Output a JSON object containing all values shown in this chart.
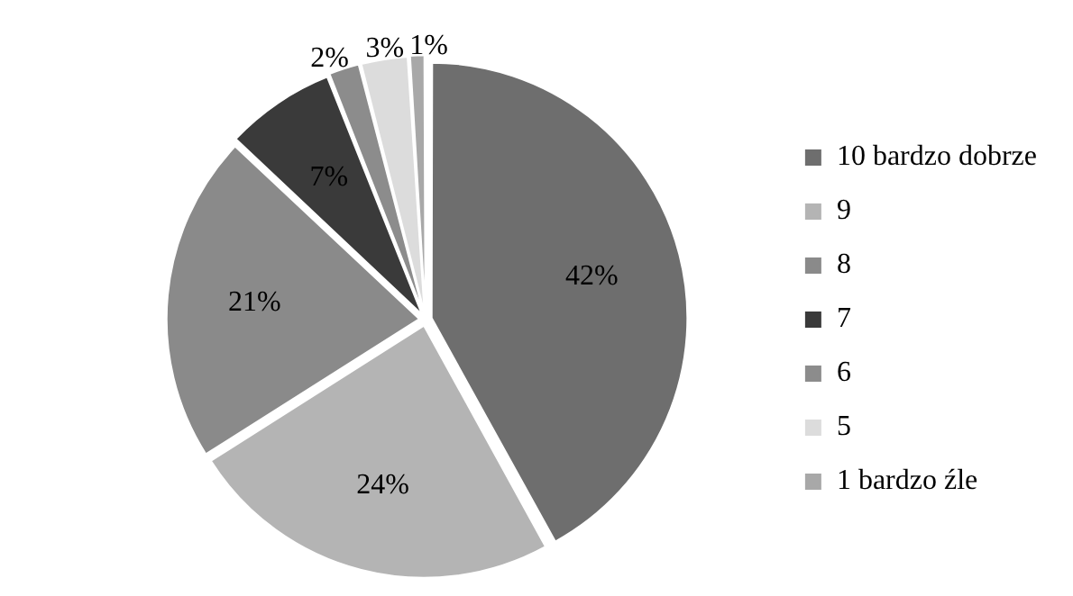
{
  "chart_data": {
    "type": "pie",
    "categories": [
      "10 bardzo dobrze",
      "9",
      "8",
      "7",
      "6",
      "5",
      "1 bardzo źle"
    ],
    "values": [
      42,
      24,
      21,
      7,
      2,
      3,
      1
    ],
    "value_labels": [
      "42%",
      "24%",
      "21%",
      "7%",
      "2%",
      "3%",
      "1%"
    ],
    "colors": [
      "#6e6e6e",
      "#b4b4b4",
      "#8a8a8a",
      "#3a3a3a",
      "#8c8c8c",
      "#dcdcdc",
      "#a8a8a8"
    ],
    "legend": "right"
  }
}
